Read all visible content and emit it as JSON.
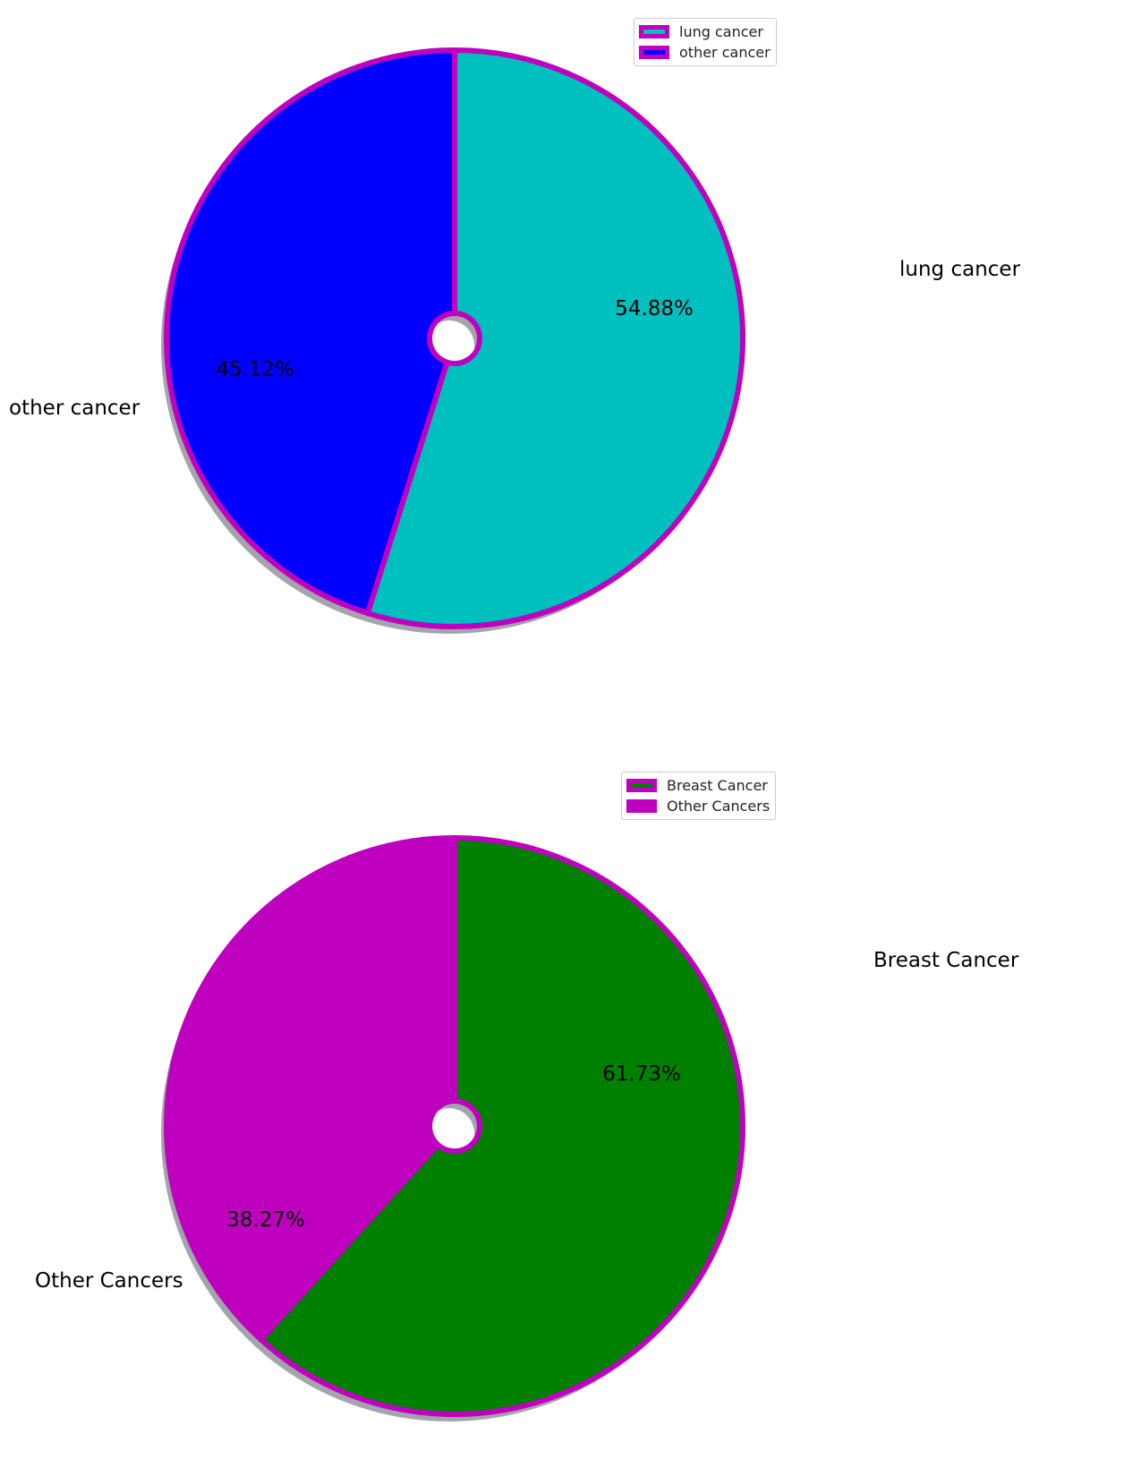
{
  "chart_data": [
    {
      "type": "pie",
      "categories": [
        "lung cancer",
        "other cancer"
      ],
      "values": [
        54.88,
        45.12
      ],
      "percent_labels": [
        "54.88%",
        "45.12%"
      ],
      "colors": [
        "#00bfbf",
        "#0000ff"
      ],
      "edge_color": "#bf00bf",
      "shadow": true,
      "legend": {
        "placement": "top-right",
        "entries": [
          "lung cancer",
          "other cancer"
        ]
      }
    },
    {
      "type": "pie",
      "categories": [
        "Breast Cancer",
        "Other Cancers"
      ],
      "values": [
        61.73,
        38.27
      ],
      "percent_labels": [
        "61.73%",
        "38.27%"
      ],
      "colors": [
        "#008000",
        "#bf00bf"
      ],
      "edge_color": "#bf00bf",
      "shadow": true,
      "legend": {
        "placement": "top-right",
        "entries": [
          "Breast Cancer",
          "Other Cancers"
        ]
      }
    }
  ]
}
